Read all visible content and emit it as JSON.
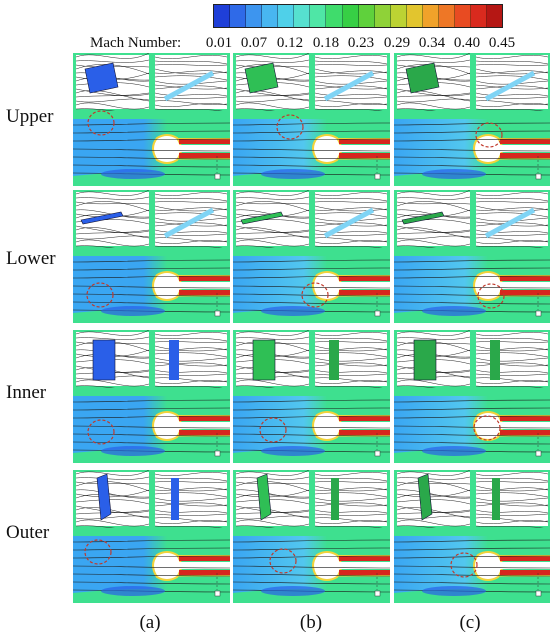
{
  "legend": {
    "title": "Mach Number:",
    "ticks": [
      "0.01",
      "0.07",
      "0.12",
      "0.18",
      "0.23",
      "0.29",
      "0.34",
      "0.40",
      "0.45"
    ],
    "colors": [
      "#1f3fd8",
      "#2f6ae8",
      "#3d95ef",
      "#48b6f0",
      "#4fd0e9",
      "#56e0cf",
      "#4fe6a6",
      "#3fdc6c",
      "#37cf45",
      "#5fd13c",
      "#8fd238",
      "#bcd333",
      "#e2c52e",
      "#f0a22a",
      "#ee7726",
      "#e84b22",
      "#d92a1e",
      "#b51714"
    ]
  },
  "rows": [
    "Upper",
    "Lower",
    "Inner",
    "Outer"
  ],
  "columns": [
    "(a)",
    "(b)",
    "(c)"
  ],
  "colors": {
    "panel_bg": "#3ee08f",
    "flow_blue": "#3aa6f2",
    "deep_blue": "#2a5fe8",
    "red": "#d7261e",
    "yellow": "#f2d33a",
    "vortex": "#c0392b"
  }
}
